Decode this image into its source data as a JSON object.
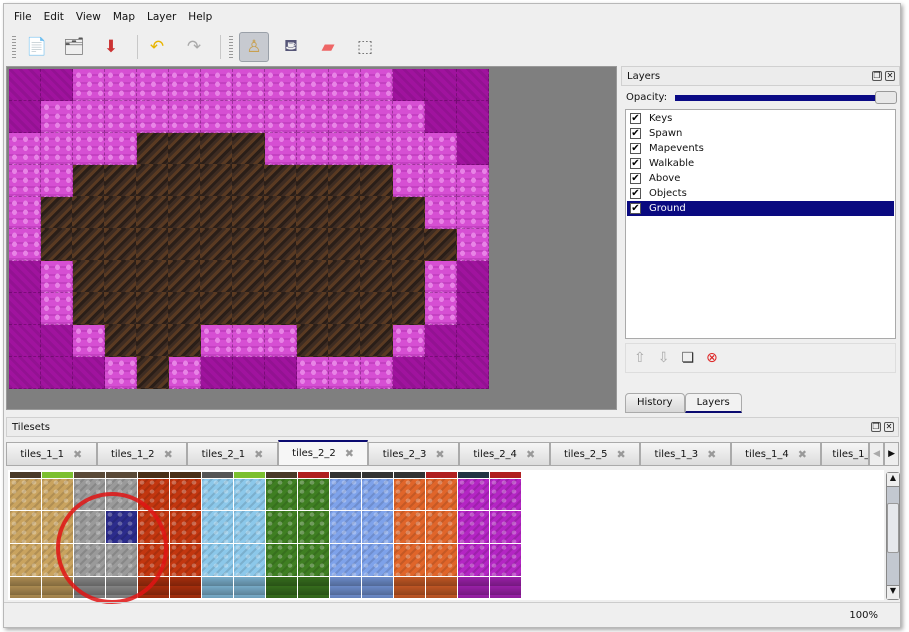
{
  "menu": [
    "File",
    "Edit",
    "View",
    "Map",
    "Layer",
    "Help"
  ],
  "toolbar": [
    {
      "icon": "new-file-icon",
      "glyph": "📄"
    },
    {
      "icon": "open-folder-icon",
      "glyph": "🗂"
    },
    {
      "icon": "save-icon",
      "glyph": "⬇"
    },
    {
      "icon": "undo-icon",
      "glyph": "↶"
    },
    {
      "icon": "redo-icon",
      "glyph": "↷"
    },
    {
      "icon": "stamp-brush-icon",
      "glyph": "♙",
      "active": true
    },
    {
      "icon": "bucket-fill-icon",
      "glyph": "⛾"
    },
    {
      "icon": "eraser-icon",
      "glyph": "▰"
    },
    {
      "icon": "rect-select-icon",
      "glyph": "⬚"
    }
  ],
  "map": {
    "rows": [
      "DDPPPPPPPPPPDDD",
      "DPPPPPPPPPPPPDD",
      "PPPPBBBBPPPPPPD",
      "PPBBBBBBBBBBPPP",
      "PBBBBBBBBBBBBPP",
      "PBBBBBBBBBBBBBP",
      "DPBBBBBBBBBBBPD",
      "DPBBBBBBBBBBBPD",
      "DDPBBBPPPBBBPDD",
      "DDDPBPDDDPPPDDD"
    ]
  },
  "layers_panel": {
    "title": "Layers",
    "opacity_label": "Opacity:",
    "opacity": 1.0,
    "layers": [
      {
        "name": "Keys",
        "visible": true
      },
      {
        "name": "Spawn",
        "visible": true
      },
      {
        "name": "Mapevents",
        "visible": true
      },
      {
        "name": "Walkable",
        "visible": true
      },
      {
        "name": "Above",
        "visible": true
      },
      {
        "name": "Objects",
        "visible": true
      },
      {
        "name": "Ground",
        "visible": true,
        "selected": true
      }
    ],
    "tabs": [
      "History",
      "Layers"
    ],
    "active_tab": "Layers"
  },
  "tilesets": {
    "title": "Tilesets",
    "tabs": [
      "tiles_1_1",
      "tiles_1_2",
      "tiles_2_1",
      "tiles_2_2",
      "tiles_2_3",
      "tiles_2_4",
      "tiles_2_5",
      "tiles_1_3",
      "tiles_1_4",
      "tiles_1_"
    ],
    "active_tab": "tiles_2_2",
    "columns": [
      "#c9a35f",
      "#c9a35f",
      "#9a9a9a",
      "#9a9a9a",
      "#c2360f",
      "#c2360f",
      "#8cc8ea",
      "#8cc8ea",
      "#3f7f22",
      "#3f7f22",
      "#7ea2ea",
      "#7ea2ea",
      "#e0652a",
      "#e0652a",
      "#b425c4",
      "#b425c4"
    ],
    "selected_color": "#2c2c8c"
  },
  "status": {
    "zoom": "100%"
  }
}
